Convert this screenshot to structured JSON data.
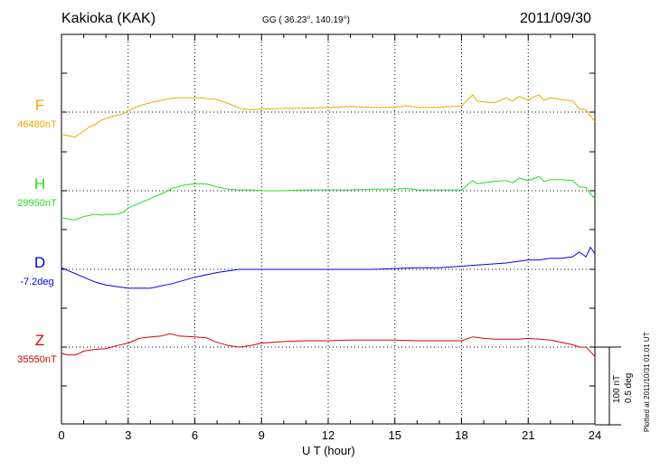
{
  "header": {
    "station": "Kakioka (KAK)",
    "coords": "GG ( 36.23°, 140.19°)",
    "date": "2011/09/30"
  },
  "footer": {
    "plotted": "Plotted at 2011/10/31 01:01 UT",
    "scale_nt": "100 nT",
    "scale_deg": "0.5 deg"
  },
  "chart_data": {
    "type": "line",
    "title": "Kakioka (KAK)",
    "xlabel": "U T (hour)",
    "ylabel": "",
    "xlim": [
      0,
      24
    ],
    "x_ticks": [
      "0",
      "3",
      "6",
      "9",
      "12",
      "15",
      "18",
      "21",
      "24"
    ],
    "grid": true,
    "scale": {
      "nT_per_bar": 100,
      "deg_per_bar": 0.5
    },
    "series": [
      {
        "name": "F",
        "baseline_label": "46480nT",
        "unit": "nT",
        "color": "#f0a800",
        "x": [
          0,
          0.3,
          0.6,
          0.8,
          1,
          1.3,
          1.5,
          1.8,
          2,
          2.5,
          2.8,
          3,
          3.5,
          4,
          4.5,
          4.8,
          5.2,
          5.6,
          6,
          6.3,
          6.6,
          7,
          7.5,
          8,
          8.5,
          9,
          9.5,
          10,
          11,
          12,
          13,
          14,
          15,
          15.5,
          16,
          17,
          18,
          18.5,
          18.7,
          19,
          19.5,
          20,
          20.3,
          20.6,
          21,
          21.3,
          21.5,
          21.7,
          22,
          22.5,
          23,
          23.3,
          23.6,
          23.8,
          24
        ],
        "values": [
          -28,
          -30,
          -32,
          -28,
          -24,
          -18,
          -16,
          -10,
          -8,
          -4,
          -2,
          2,
          8,
          12,
          15,
          17,
          18,
          18,
          18,
          18,
          17,
          16,
          11,
          5,
          3,
          4,
          4,
          5,
          5,
          6,
          7,
          6,
          6,
          8,
          6,
          6,
          8,
          22,
          14,
          13,
          12,
          18,
          14,
          20,
          15,
          20,
          22,
          15,
          18,
          16,
          14,
          4,
          3,
          -5,
          -12
        ]
      },
      {
        "name": "H",
        "baseline_label": "29950nT",
        "unit": "nT",
        "color": "#22dd22",
        "x": [
          0,
          0.3,
          0.6,
          0.8,
          1,
          1.3,
          1.5,
          1.8,
          2,
          2.5,
          2.8,
          3,
          3.5,
          4,
          4.5,
          5,
          5.5,
          6,
          6.3,
          6.6,
          7,
          7.5,
          8,
          8.5,
          9,
          10,
          11,
          12,
          13,
          14,
          15,
          15.5,
          16,
          17,
          18,
          18.5,
          18.7,
          19,
          19.5,
          20,
          20.3,
          20.6,
          21,
          21.3,
          21.5,
          21.7,
          22,
          22.5,
          23,
          23.3,
          23.6,
          23.8,
          24
        ],
        "values": [
          -34,
          -36,
          -37,
          -35,
          -33,
          -31,
          -30,
          -31,
          -30,
          -30,
          -27,
          -22,
          -16,
          -10,
          -4,
          3,
          7,
          9,
          9,
          8,
          5,
          2,
          1,
          1,
          0,
          0,
          1,
          1,
          1,
          2,
          2,
          3,
          1,
          1,
          1,
          13,
          9,
          10,
          12,
          13,
          10,
          16,
          13,
          16,
          18,
          12,
          14,
          14,
          13,
          5,
          4,
          -4,
          -10
        ]
      },
      {
        "name": "D",
        "baseline_label": "-7.2deg",
        "unit": "deg",
        "color": "#0000ee",
        "x": [
          0,
          0.5,
          1,
          1.5,
          2,
          2.5,
          3,
          3.5,
          4,
          5,
          6,
          7,
          7.5,
          8,
          8.5,
          9,
          10,
          12,
          14,
          16,
          17,
          18,
          19,
          20,
          21,
          21.5,
          22,
          22.5,
          23,
          23.3,
          23.6,
          23.8,
          24
        ],
        "values": [
          0.01,
          -0.02,
          -0.05,
          -0.08,
          -0.1,
          -0.11,
          -0.12,
          -0.12,
          -0.12,
          -0.09,
          -0.05,
          -0.02,
          -0.01,
          0,
          0,
          0,
          0,
          0,
          0,
          0.01,
          0.01,
          0.02,
          0.03,
          0.04,
          0.06,
          0.06,
          0.07,
          0.07,
          0.08,
          0.11,
          0.08,
          0.14,
          0.1
        ]
      },
      {
        "name": "Z",
        "baseline_label": "35550nT",
        "unit": "nT",
        "color": "#dd0000",
        "x": [
          0,
          0.3,
          0.6,
          0.8,
          1,
          1.5,
          2,
          2.5,
          3,
          3.5,
          4,
          4.5,
          4.9,
          5.3,
          6,
          6.5,
          7,
          7.5,
          8,
          8.5,
          9,
          10,
          11,
          12,
          13,
          14,
          15,
          16,
          17,
          18,
          18.5,
          19,
          19.5,
          20,
          20.5,
          21,
          21.5,
          22,
          22.5,
          23,
          23.3,
          23.6,
          23.8,
          24
        ],
        "values": [
          -8,
          -10,
          -10,
          -8,
          -5,
          -3,
          -2,
          2,
          5,
          11,
          13,
          14,
          17,
          14,
          13,
          12,
          6,
          2,
          0,
          2,
          5,
          7,
          8,
          8,
          9,
          9,
          9,
          8,
          8,
          8,
          13,
          11,
          10,
          10,
          10,
          11,
          10,
          9,
          6,
          3,
          0,
          0,
          -6,
          -12
        ]
      }
    ]
  }
}
